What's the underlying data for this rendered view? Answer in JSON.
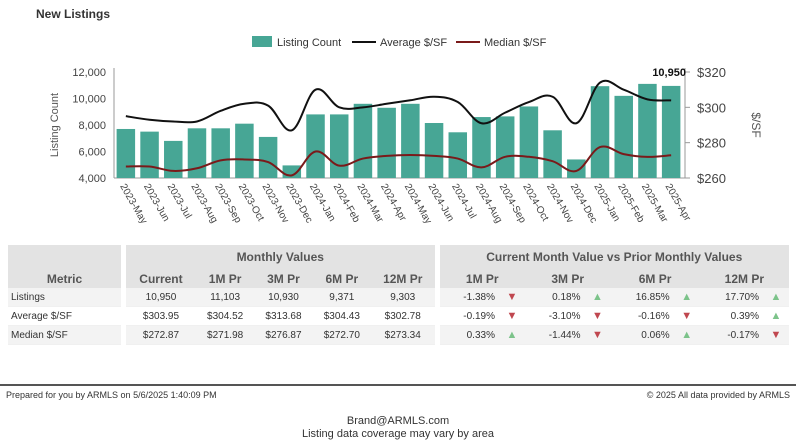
{
  "page": {
    "title": "New Listings"
  },
  "chart_data": {
    "type": "bar",
    "legend": {
      "placement": "top",
      "entries": [
        "Listing Count",
        "Average $/SF",
        "Median $/SF"
      ]
    },
    "categories": [
      "2023-May",
      "2023-Jun",
      "2023-Jul",
      "2023-Aug",
      "2023-Sep",
      "2023-Oct",
      "2023-Nov",
      "2023-Dec",
      "2024-Jan",
      "2024-Feb",
      "2024-Mar",
      "2024-Apr",
      "2024-May",
      "2024-Jun",
      "2024-Jul",
      "2024-Aug",
      "2024-Sep",
      "2024-Oct",
      "2024-Nov",
      "2024-Dec",
      "2025-Jan",
      "2025-Feb",
      "2025-Mar",
      "2025-Apr"
    ],
    "series": [
      {
        "name": "Listing Count",
        "kind": "bar",
        "axis": "left",
        "color": "#47a695",
        "values": [
          7700,
          7500,
          6800,
          7750,
          7750,
          8100,
          7100,
          4950,
          8800,
          8800,
          9600,
          9300,
          9600,
          8150,
          7450,
          8600,
          8650,
          9400,
          7600,
          5400,
          10930,
          10200,
          11103,
          10950
        ]
      },
      {
        "name": "Average $/SF",
        "kind": "line",
        "axis": "right",
        "color": "#111111",
        "values": [
          295,
          293,
          292,
          292,
          298,
          302,
          301,
          287,
          310,
          300,
          300,
          302,
          304,
          306,
          303,
          291,
          297,
          303,
          306,
          291,
          314,
          310,
          304.52,
          303.95
        ]
      },
      {
        "name": "Median $/SF",
        "kind": "line",
        "axis": "right",
        "color": "#7a1a1a",
        "values": [
          266.5,
          266.5,
          264,
          265.5,
          270,
          270.5,
          269,
          261.5,
          275,
          267,
          271,
          272.5,
          273,
          272.5,
          271,
          266,
          272,
          272,
          269.5,
          264,
          277.5,
          273.5,
          271.98,
          272.87
        ]
      }
    ],
    "data_label": {
      "index": 23,
      "text": "10,950"
    },
    "y_left": {
      "label": "Listing Count",
      "min": 4000,
      "max": 12000,
      "ticks": [
        "4,000",
        "6,000",
        "8,000",
        "10,000",
        "12,000"
      ],
      "tick_values": [
        4000,
        6000,
        8000,
        10000,
        12000
      ]
    },
    "y_right": {
      "label": "$/SF",
      "min": 260,
      "max": 320,
      "ticks": [
        "$260",
        "$280",
        "$300",
        "$320"
      ],
      "tick_values": [
        260,
        280,
        300,
        320
      ]
    },
    "grid": false
  },
  "table": {
    "group_headers": {
      "metric": "Metric",
      "monthly": "Monthly Values",
      "compare": "Current Month Value vs Prior Monthly Values"
    },
    "monthly_cols": [
      "Current",
      "1M Pr",
      "3M Pr",
      "6M Pr",
      "12M Pr"
    ],
    "compare_cols": [
      "1M Pr",
      "3M Pr",
      "6M Pr",
      "12M Pr"
    ],
    "rows": [
      {
        "metric": "Listings",
        "values": [
          "10,950",
          "11,103",
          "10,930",
          "9,371",
          "9,303"
        ],
        "compare": [
          {
            "pct": "-1.38%",
            "dir": "down"
          },
          {
            "pct": "0.18%",
            "dir": "up"
          },
          {
            "pct": "16.85%",
            "dir": "up"
          },
          {
            "pct": "17.70%",
            "dir": "up"
          }
        ]
      },
      {
        "metric": "Average $/SF",
        "values": [
          "$303.95",
          "$304.52",
          "$313.68",
          "$304.43",
          "$302.78"
        ],
        "compare": [
          {
            "pct": "-0.19%",
            "dir": "down"
          },
          {
            "pct": "-3.10%",
            "dir": "down"
          },
          {
            "pct": "-0.16%",
            "dir": "down"
          },
          {
            "pct": "0.39%",
            "dir": "up"
          }
        ]
      },
      {
        "metric": "Median $/SF",
        "values": [
          "$272.87",
          "$271.98",
          "$276.87",
          "$272.70",
          "$273.34"
        ],
        "compare": [
          {
            "pct": "0.33%",
            "dir": "up"
          },
          {
            "pct": "-1.44%",
            "dir": "down"
          },
          {
            "pct": "0.06%",
            "dir": "up"
          },
          {
            "pct": "-0.17%",
            "dir": "down"
          }
        ]
      }
    ]
  },
  "footer": {
    "prepared": "Prepared for you by ARMLS on 5/6/2025 1:40:09 PM",
    "copyright": "© 2025 All data provided by ARMLS",
    "email": "Brand@ARMLS.com",
    "coverage": "Listing data coverage may vary by area"
  },
  "colors": {
    "up_arrow": "#7cc38a",
    "down_arrow": "#c0474f"
  }
}
